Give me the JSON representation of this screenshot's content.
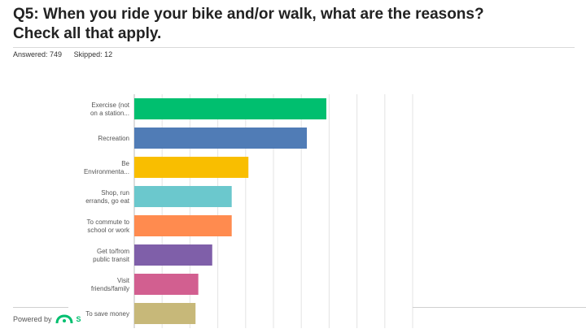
{
  "header": {
    "title_line1": "Q5: When you ride your bike and/or walk, what are the reasons?",
    "title_line2": "Check all that apply.",
    "answered": "Answered: 749",
    "skipped": "Skipped: 12"
  },
  "footer": {
    "powered_by": "Powered by",
    "logo_letter": "S"
  },
  "chart_data": {
    "type": "bar",
    "orientation": "horizontal",
    "categories": [
      [
        "Exercise (not",
        "on a station..."
      ],
      [
        "Recreation"
      ],
      [
        "Be",
        "Environmenta..."
      ],
      [
        "Shop, run",
        "errands, go eat"
      ],
      [
        "To commute to",
        "school or work"
      ],
      [
        "Get to/from",
        "public transit"
      ],
      [
        "Visit",
        "friends/family"
      ],
      [
        "To save money"
      ]
    ],
    "values": [
      69,
      62,
      41,
      35,
      35,
      28,
      23,
      22
    ],
    "colors": [
      "#00bf6f",
      "#507cb6",
      "#f9be00",
      "#6bc8cd",
      "#ff8b4f",
      "#7f5fa9",
      "#d25f90",
      "#c7b879"
    ],
    "xlim": [
      0,
      100
    ],
    "grid": true
  }
}
